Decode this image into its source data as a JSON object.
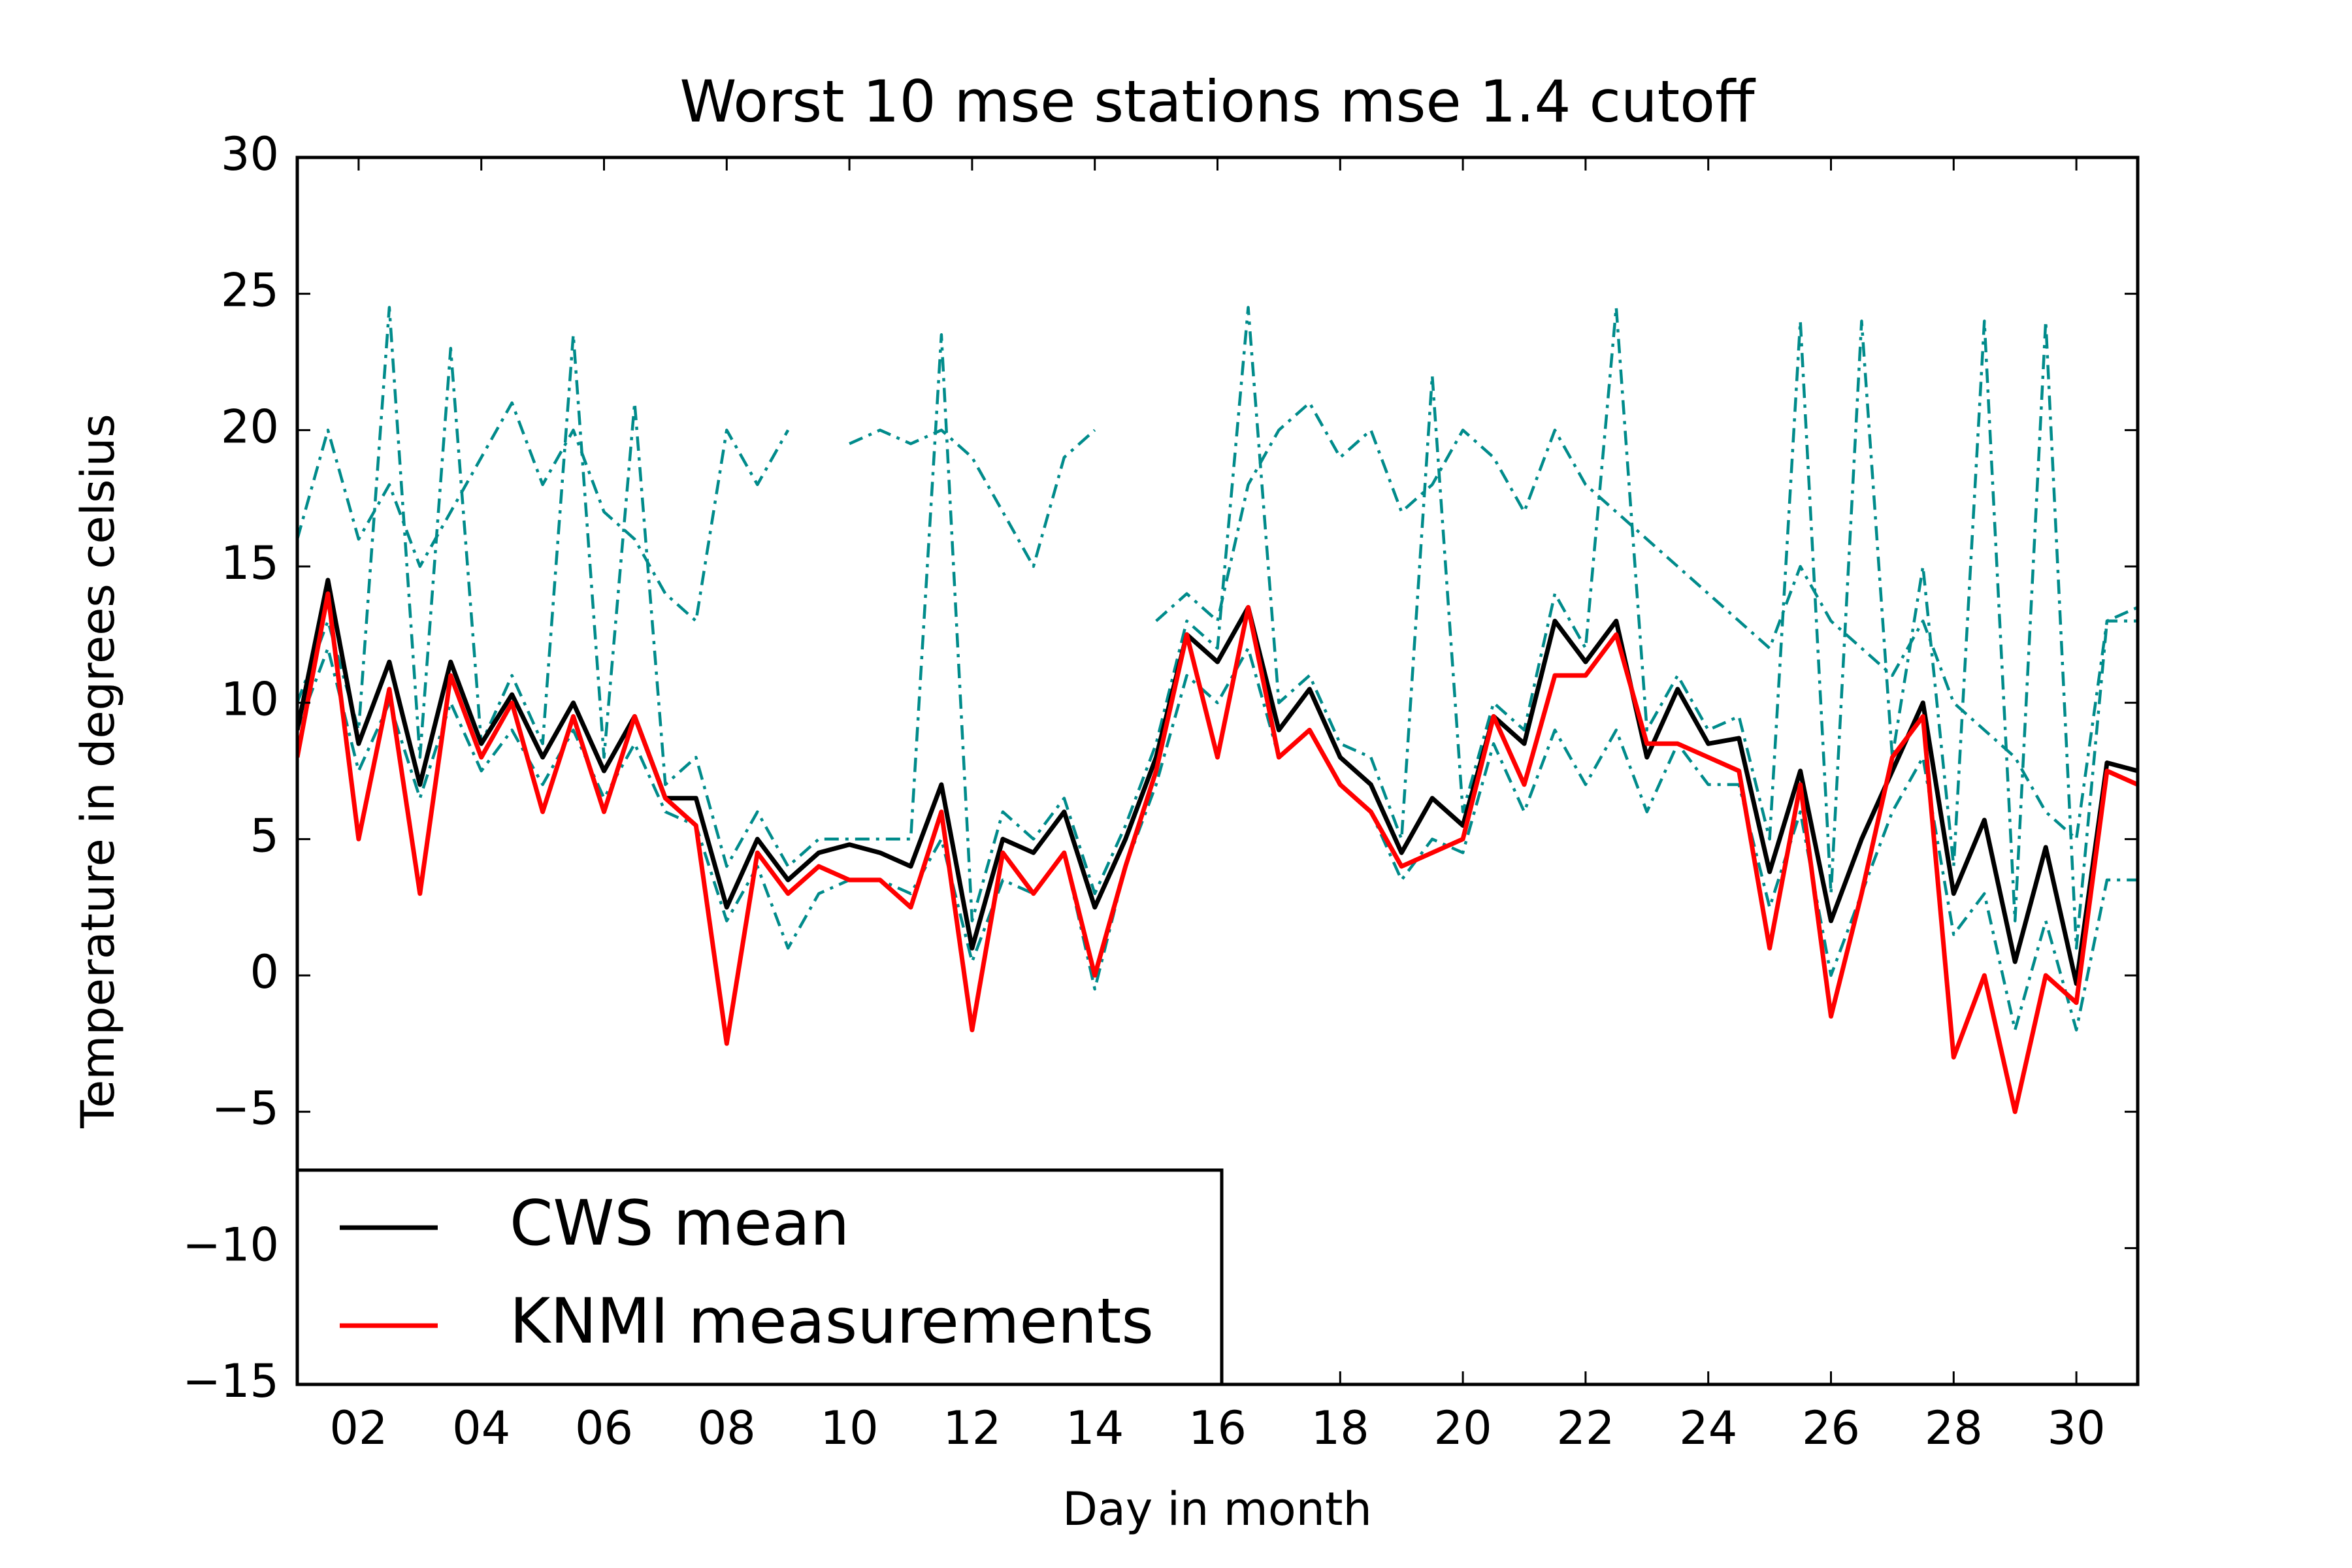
{
  "chart_data": {
    "type": "line",
    "title": "Worst 10 mse stations mse 1.4 cutoff",
    "x_label": "Day in month",
    "y_label": "Temperature in degrees celsius",
    "x": [
      1,
      1.5,
      2,
      2.5,
      3,
      3.5,
      4,
      4.5,
      5,
      5.5,
      6,
      6.5,
      7,
      7.5,
      8,
      8.5,
      9,
      9.5,
      10,
      10.5,
      11,
      11.5,
      12,
      12.5,
      13,
      13.5,
      14,
      14.5,
      15,
      15.5,
      16,
      16.5,
      17,
      17.5,
      18,
      18.5,
      19,
      19.5,
      20,
      20.5,
      21,
      21.5,
      22,
      22.5,
      23,
      23.5,
      24,
      24.5,
      25,
      25.5,
      26,
      26.5,
      27,
      27.5,
      28,
      28.5,
      29,
      29.5,
      30,
      30.5,
      31
    ],
    "series": [
      {
        "color": "#008b8b",
        "style": "dashdot",
        "values": [
          10,
          13,
          9,
          24.5,
          8,
          23,
          8.5,
          11,
          8.5,
          23.5,
          8,
          21,
          7,
          8,
          4,
          6,
          4,
          5,
          5,
          5,
          5,
          23.5,
          2,
          6,
          5,
          6.5,
          3,
          5.5,
          8.5,
          13,
          12,
          24.5,
          10,
          11,
          8.5,
          8,
          5,
          22,
          6,
          10,
          9,
          14,
          12,
          24.5,
          9,
          11,
          9,
          9.5,
          5,
          24,
          3,
          24,
          8,
          15,
          4,
          24,
          2,
          24,
          1,
          13,
          13.5
        ]
      },
      {
        "color": "#008b8b",
        "style": "dashdot",
        "values": [
          16,
          20,
          16,
          18,
          15,
          17,
          19,
          21,
          18,
          20,
          17,
          16,
          14,
          13,
          20,
          18,
          20,
          null,
          19.5,
          20,
          19.5,
          20,
          19,
          17,
          15,
          19,
          20,
          null,
          13,
          14,
          13,
          18,
          20,
          21,
          19,
          20,
          17,
          18,
          20,
          19,
          17,
          20,
          18,
          17,
          16,
          15,
          14,
          13,
          12,
          15,
          13,
          12,
          11,
          13,
          10,
          9,
          8,
          6,
          5,
          13,
          13
        ]
      },
      {
        "color": "#008b8b",
        "style": "dashdot",
        "values": [
          9,
          12,
          7.5,
          10,
          6.5,
          10,
          7.5,
          9,
          7,
          9,
          6.5,
          8.5,
          6,
          5.5,
          2,
          4,
          1,
          3,
          3.5,
          3.5,
          3,
          5,
          0.5,
          3.5,
          3,
          4.5,
          -0.5,
          4,
          7,
          11,
          10,
          12,
          8,
          9,
          7,
          6,
          3.5,
          5,
          4.5,
          8.5,
          6,
          9,
          7,
          9,
          6,
          8.5,
          7,
          7,
          2.5,
          6,
          0,
          3,
          6,
          8,
          1.5,
          3,
          -2,
          2,
          -2,
          3.5,
          3.5
        ]
      },
      {
        "name": "CWS mean",
        "color": "#000000",
        "style": "solid",
        "values": [
          9,
          14.5,
          8.5,
          11.5,
          7,
          11.5,
          8.5,
          10.3,
          8,
          10,
          7.5,
          9.5,
          6.5,
          6.5,
          2.5,
          5,
          3.5,
          4.5,
          4.8,
          4.5,
          4,
          7,
          1,
          5,
          4.5,
          6,
          2.5,
          5,
          8,
          12.5,
          11.5,
          13.5,
          9,
          10.5,
          8,
          7,
          4.5,
          6.5,
          5.5,
          9.5,
          8.5,
          13,
          11.5,
          13,
          8,
          10.5,
          8.5,
          8.7,
          3.8,
          7.5,
          2,
          5,
          7.5,
          10,
          3,
          5.7,
          0.5,
          4.7,
          -0.3,
          7.8,
          7.5
        ]
      },
      {
        "name": "KNMI measurements",
        "color": "#ff0000",
        "style": "solid",
        "values": [
          8,
          14,
          5,
          10.5,
          3,
          11,
          8,
          10,
          6,
          9.5,
          6,
          9.5,
          6.5,
          5.5,
          -2.5,
          4.5,
          3,
          4,
          3.5,
          3.5,
          2.5,
          6,
          -2,
          4.5,
          3,
          4.5,
          0,
          4,
          7.5,
          12.5,
          8,
          13.5,
          8,
          9,
          7,
          6,
          4,
          4.5,
          5,
          9.5,
          7,
          11,
          11,
          12.5,
          8.5,
          8.5,
          8,
          7.5,
          1,
          7,
          -1.5,
          3,
          8,
          9.5,
          -3,
          0,
          -5,
          0,
          -1,
          7.5,
          7
        ]
      }
    ],
    "xlim": [
      1,
      31
    ],
    "xticks": [
      {
        "value": 2,
        "label": "02"
      },
      {
        "value": 4,
        "label": "04"
      },
      {
        "value": 6,
        "label": "06"
      },
      {
        "value": 8,
        "label": "08"
      },
      {
        "value": 10,
        "label": "10"
      },
      {
        "value": 12,
        "label": "12"
      },
      {
        "value": 14,
        "label": "14"
      },
      {
        "value": 16,
        "label": "16"
      },
      {
        "value": 18,
        "label": "18"
      },
      {
        "value": 20,
        "label": "20"
      },
      {
        "value": 22,
        "label": "22"
      },
      {
        "value": 24,
        "label": "24"
      },
      {
        "value": 26,
        "label": "26"
      },
      {
        "value": 28,
        "label": "28"
      },
      {
        "value": 30,
        "label": "30"
      }
    ],
    "ylim": [
      -15,
      30
    ],
    "yticks": [
      {
        "value": -15,
        "label": "−15"
      },
      {
        "value": -10,
        "label": "−10"
      },
      {
        "value": -5,
        "label": "−5"
      },
      0,
      5,
      10,
      15,
      20,
      25,
      30
    ],
    "legend": "lower left",
    "grid": false
  }
}
